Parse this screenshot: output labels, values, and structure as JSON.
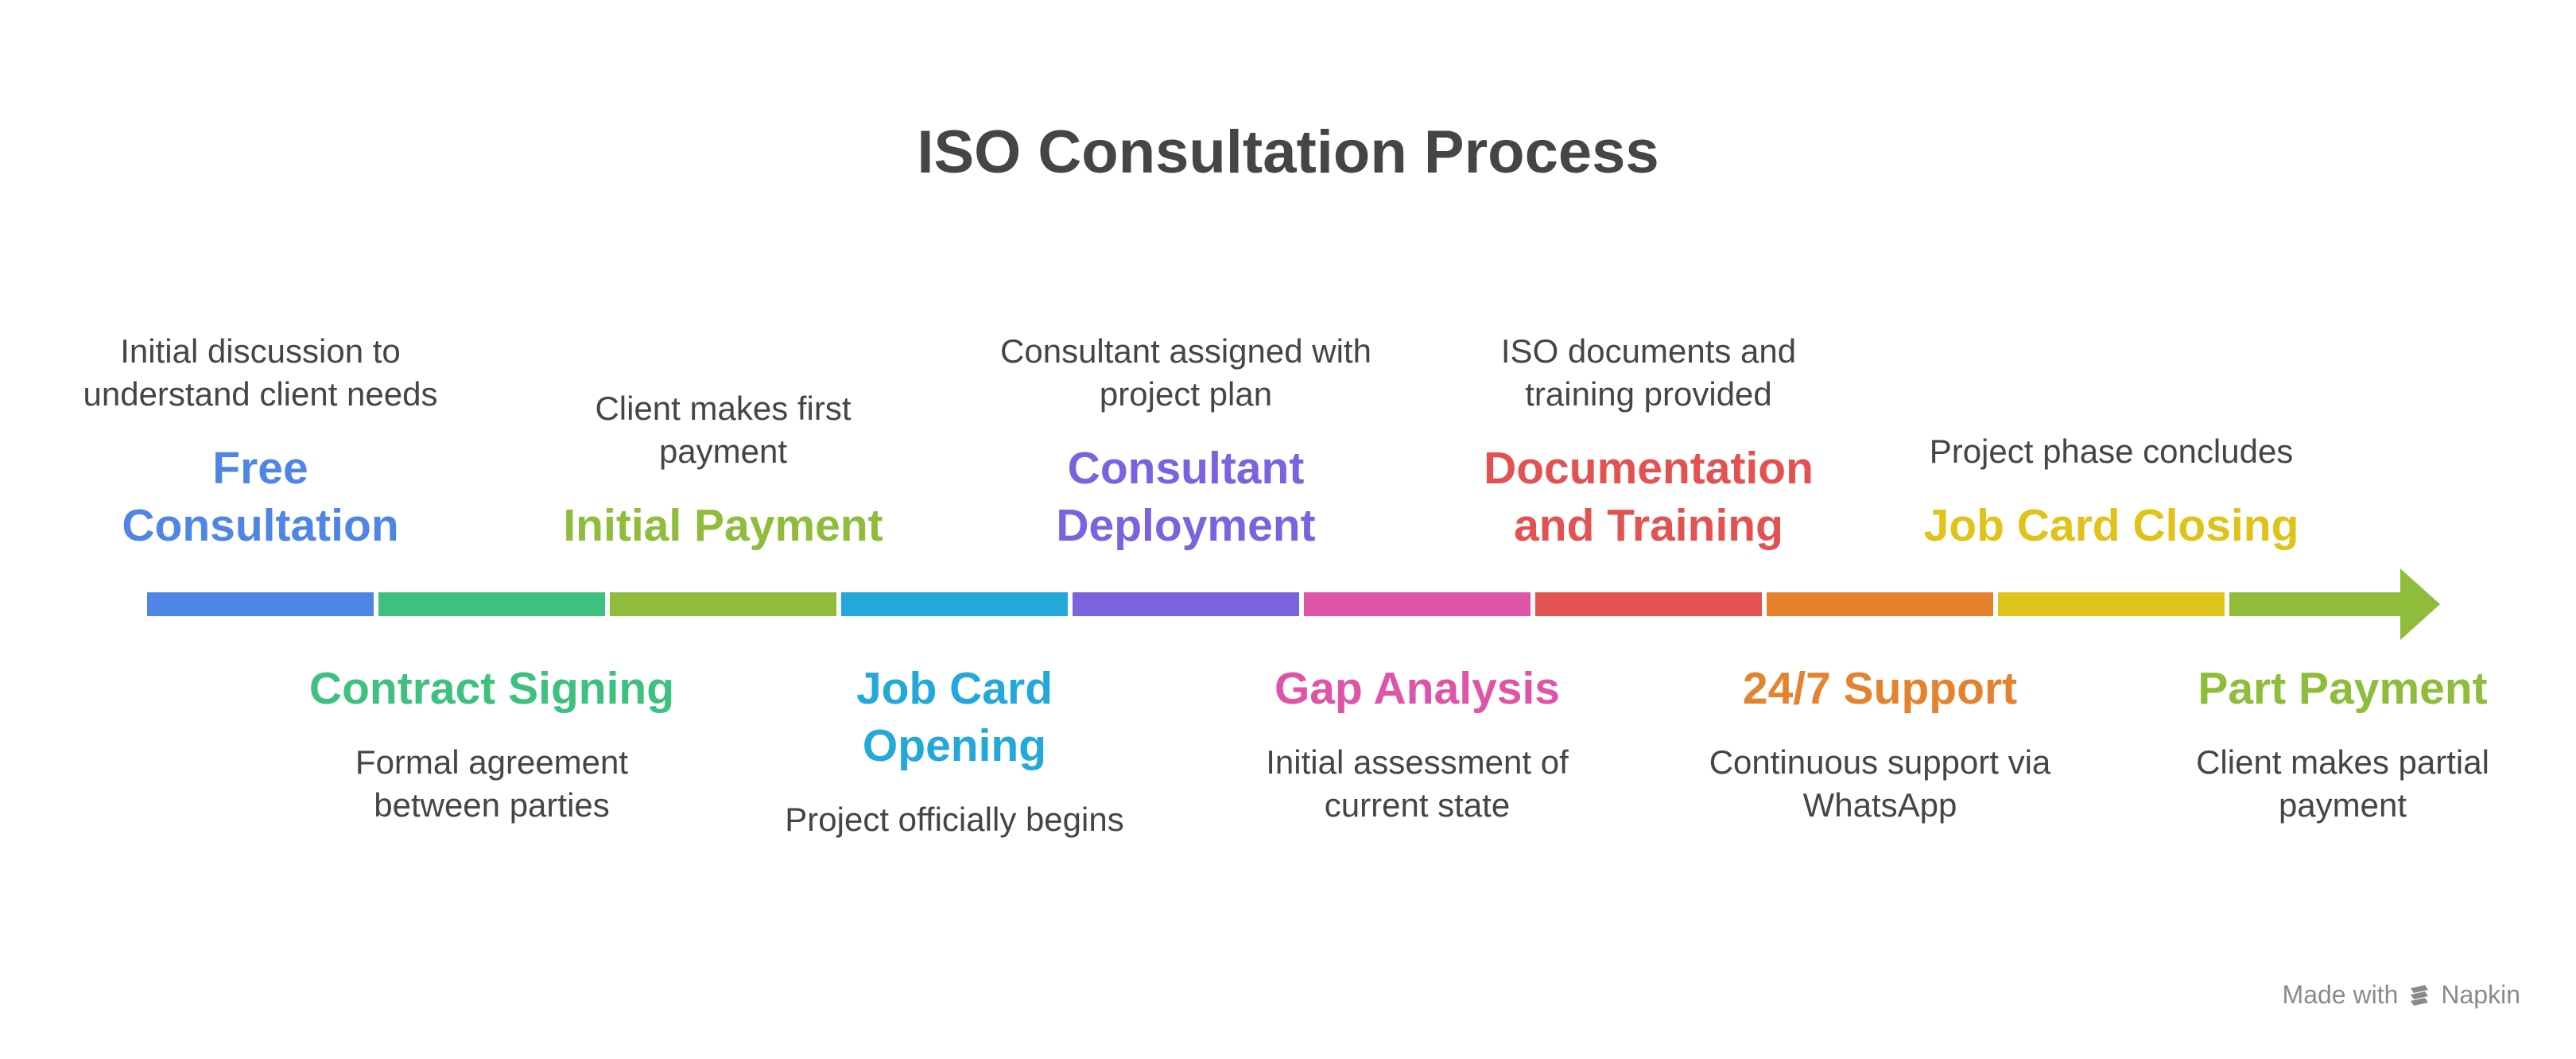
{
  "title": "ISO Consultation Process",
  "stages": [
    {
      "label": "Free Consultation",
      "desc": "Initial discussion to understand client needs",
      "color": "#4f86e6",
      "position": "top"
    },
    {
      "label": "Contract Signing",
      "desc": "Formal agreement between parties",
      "color": "#3ec07e",
      "position": "bottom"
    },
    {
      "label": "Initial Payment",
      "desc": "Client makes first payment",
      "color": "#8fbc3a",
      "position": "top"
    },
    {
      "label": "Job Card Opening",
      "desc": "Project officially begins",
      "color": "#22a9da",
      "position": "bottom"
    },
    {
      "label": "Consultant Deployment",
      "desc": "Consultant assigned with project plan",
      "color": "#7b63e0",
      "position": "top"
    },
    {
      "label": "Gap Analysis",
      "desc": "Initial assessment of current state",
      "color": "#de55a8",
      "position": "bottom"
    },
    {
      "label": "Documentation and Training",
      "desc": "ISO documents and training provided",
      "color": "#e35252",
      "position": "top"
    },
    {
      "label": "24/7 Support",
      "desc": "Continuous support via WhatsApp",
      "color": "#e5822e",
      "position": "bottom"
    },
    {
      "label": "Job Card Closing",
      "desc": "Project phase concludes",
      "color": "#dfc318",
      "position": "top"
    },
    {
      "label": "Part Payment",
      "desc": "Client makes partial payment",
      "color": "#8fbc3a",
      "position": "bottom"
    }
  ],
  "branding": {
    "prefix": "Made with",
    "name": "Napkin",
    "icon": "napkin-logo-icon"
  }
}
